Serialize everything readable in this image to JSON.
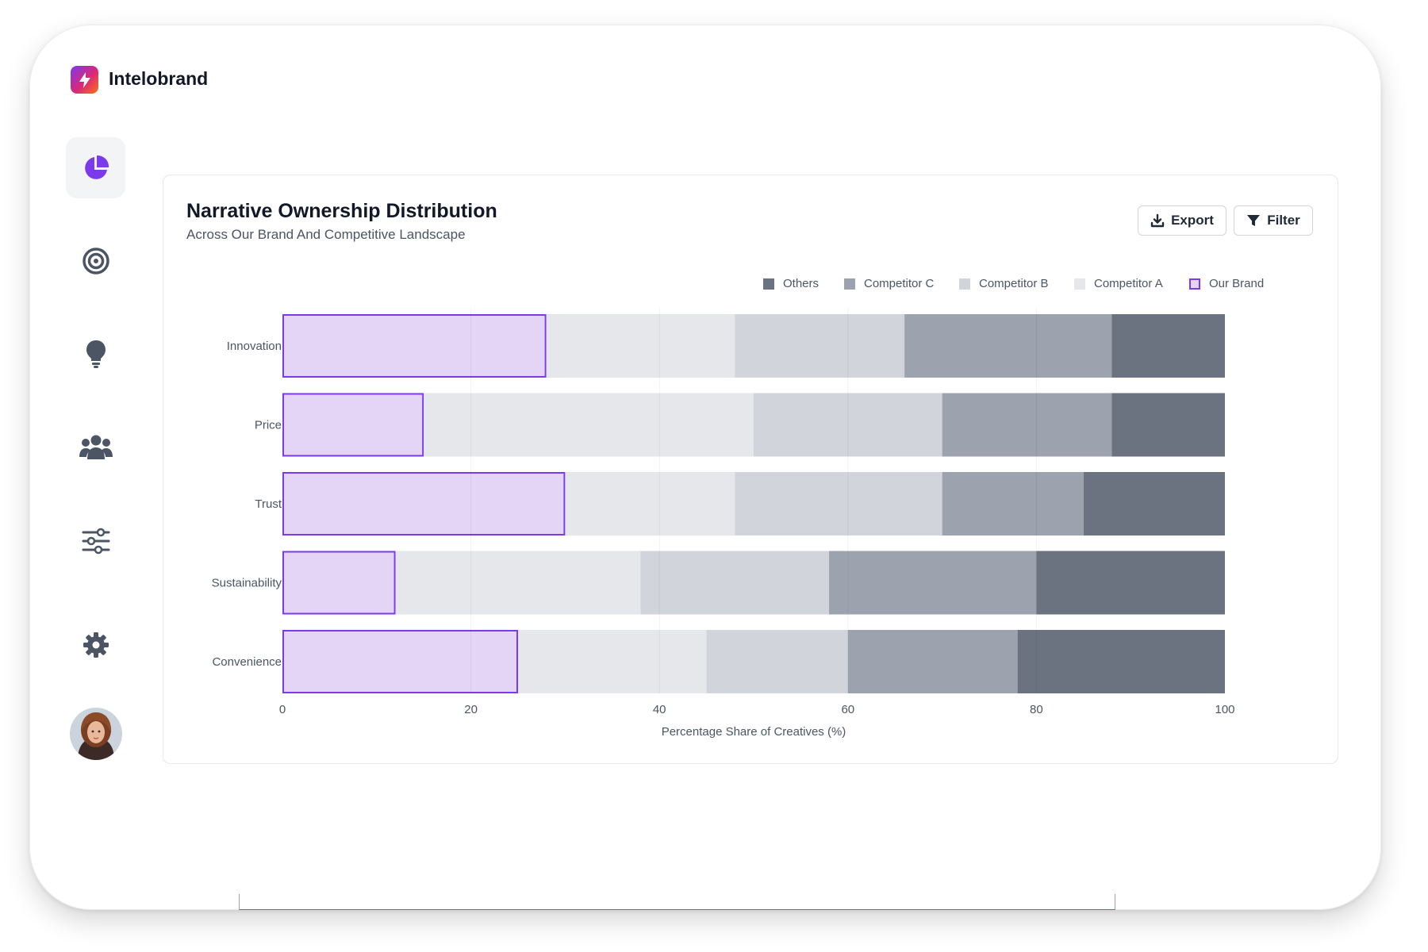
{
  "app": {
    "name": "Intelobrand"
  },
  "sidebar": {
    "items": [
      {
        "icon": "pie-chart-icon",
        "active": true
      },
      {
        "icon": "target-icon",
        "active": false
      },
      {
        "icon": "lightbulb-icon",
        "active": false
      },
      {
        "icon": "users-icon",
        "active": false
      },
      {
        "icon": "sliders-icon",
        "active": false
      },
      {
        "icon": "gear-icon",
        "active": false
      }
    ]
  },
  "card": {
    "title": "Narrative Ownership Distribution",
    "subtitle": "Across Our Brand And Competitive Landscape",
    "export_label": "Export",
    "filter_label": "Filter"
  },
  "legend": [
    {
      "label": "Others",
      "color": "#6b7280"
    },
    {
      "label": "Competitor C",
      "color": "#9ca3af"
    },
    {
      "label": "Competitor B",
      "color": "#d1d5db"
    },
    {
      "label": "Competitor A",
      "color": "#e5e7eb"
    },
    {
      "label": "Our Brand",
      "color": "#e4d4f6",
      "border": "#7c3aed"
    }
  ],
  "chart_data": {
    "type": "bar",
    "orientation": "horizontal",
    "stacked": true,
    "title": "Narrative Ownership Distribution",
    "subtitle": "Across Our Brand And Competitive Landscape",
    "xlabel": "Percentage Share of Creatives (%)",
    "ylabel": "",
    "xlim": [
      0,
      100
    ],
    "xticks": [
      0,
      20,
      40,
      60,
      80,
      100
    ],
    "categories": [
      "Innovation",
      "Price",
      "Trust",
      "Sustainability",
      "Convenience"
    ],
    "series": [
      {
        "name": "Our Brand",
        "color": "#e4d4f6",
        "border": "#7c3aed",
        "values": [
          28,
          15,
          30,
          12,
          25
        ]
      },
      {
        "name": "Competitor A",
        "color": "#e5e7eb",
        "values": [
          20,
          35,
          18,
          26,
          20
        ]
      },
      {
        "name": "Competitor B",
        "color": "#d1d5db",
        "values": [
          18,
          20,
          22,
          20,
          15
        ]
      },
      {
        "name": "Competitor C",
        "color": "#9ca3af",
        "values": [
          22,
          18,
          15,
          22,
          18
        ]
      },
      {
        "name": "Others",
        "color": "#6b7280",
        "values": [
          12,
          12,
          15,
          20,
          22
        ]
      }
    ],
    "legend_position": "top-right",
    "grid": true
  }
}
